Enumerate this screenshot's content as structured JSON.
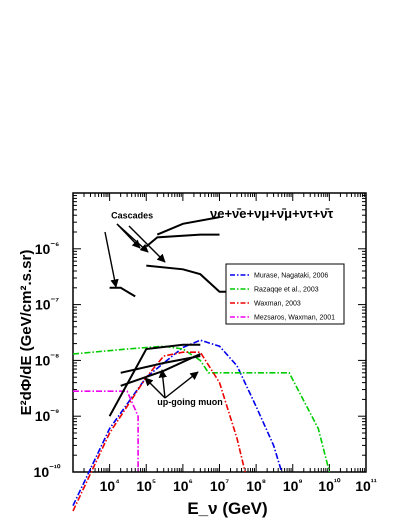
{
  "chart_data": {
    "type": "line",
    "xlabel": "E_ν (GeV)",
    "ylabel": "E²dΦ/dE (GeV/cm².s.sr)",
    "xscale": "log",
    "yscale": "log",
    "xlim": [
      1000,
      100000000000
    ],
    "ylim": [
      1e-10,
      1e-05
    ],
    "x_tick_labels": [
      "10⁴",
      "10⁵",
      "10⁶",
      "10⁷",
      "10⁸",
      "10⁹",
      "10¹⁰",
      "10¹¹"
    ],
    "y_tick_labels": [
      "10⁻¹⁰",
      "10⁻⁹",
      "10⁻⁸",
      "10⁻⁷",
      "10⁻⁶"
    ],
    "flavor_label": "νe+ν̄e+νμ+ν̄μ+ντ+ν̄τ",
    "legend_position": "right",
    "legend_entries": [
      "Murase, Nagataki, 2006",
      "Razaqqe et al., 2003",
      "Waxman, 2003",
      "Mezsaros, Waxman, 2001"
    ],
    "series": [
      {
        "name": "Murase, Nagataki, 2006",
        "color": "#0000ee",
        "dash": "dash-dot",
        "x": [
          1000,
          10000,
          100000,
          1000000,
          3000000,
          10000000,
          30000000,
          100000000,
          300000000,
          500000000
        ],
        "y": [
          2.5e-11,
          6e-10,
          5e-09,
          1.7e-08,
          2.3e-08,
          1.8e-08,
          8e-09,
          1.5e-09,
          3e-10,
          1e-10
        ]
      },
      {
        "name": "Razaqqe et al., 2003",
        "color": "#00cc00",
        "dash": "dash-dot",
        "x": [
          1000,
          30000,
          300000,
          1000000,
          3000000,
          5000000,
          800000000,
          5000000000,
          10000000000
        ],
        "y": [
          1.3e-08,
          1.6e-08,
          1.8e-08,
          1.6e-08,
          1e-08,
          6e-09,
          6e-09,
          6e-10,
          1e-10
        ]
      },
      {
        "name": "Waxman, 2003",
        "color": "#ee0000",
        "dash": "dash-dot",
        "x": [
          1000,
          10000,
          100000,
          300000,
          1000000,
          3000000,
          10000000,
          30000000,
          50000000
        ],
        "y": [
          2e-11,
          5e-10,
          5e-09,
          1.2e-08,
          1.4e-08,
          1.4e-08,
          4e-09,
          4e-10,
          1e-10
        ]
      },
      {
        "name": "Mezsaros, Waxman, 2001",
        "color": "#ee00ee",
        "dash": "dash-dot",
        "x": [
          1000,
          30000,
          60000,
          60000
        ],
        "y": [
          2.8e-09,
          2.8e-09,
          1e-09,
          1e-10
        ]
      }
    ],
    "limits": [
      {
        "group": "up-going muon",
        "x": [
          10000,
          100000,
          1000000,
          3000000
        ],
        "y": [
          1e-09,
          1.6e-08,
          1.9e-08,
          1.9e-08
        ]
      },
      {
        "group": "up-going muon",
        "x": [
          20000,
          300000,
          3000000
        ],
        "y": [
          3.5e-09,
          6.5e-09,
          1.3e-08
        ]
      },
      {
        "group": "up-going muon",
        "x": [
          20000,
          300000,
          3000000
        ],
        "y": [
          6e-09,
          9e-09,
          1.2e-08
        ]
      },
      {
        "group": "Cascades",
        "x": [
          100000,
          200000,
          3000000,
          10000000
        ],
        "y": [
          1.1e-06,
          1.6e-06,
          1.8e-06,
          1.8e-06
        ]
      },
      {
        "group": "Cascades",
        "x": [
          200000,
          1000000,
          10000000
        ],
        "y": [
          1.8e-06,
          2.8e-06,
          3.7e-06
        ]
      },
      {
        "group": "Cascades",
        "x": [
          100000,
          1000000,
          3000000,
          10000000,
          30000000
        ],
        "y": [
          5e-07,
          4.3e-07,
          3.5e-07,
          1.7e-07,
          1.7e-07
        ]
      },
      {
        "group": "Cascades",
        "x": [
          10000,
          20000,
          50000
        ],
        "y": [
          2e-07,
          2e-07,
          1.4e-07
        ]
      }
    ],
    "annotations": [
      {
        "text": "Cascades",
        "x": 11000,
        "y": 3.5e-06
      },
      {
        "text": "up-going muon",
        "x": 200000,
        "y": 1.6e-09
      }
    ]
  }
}
